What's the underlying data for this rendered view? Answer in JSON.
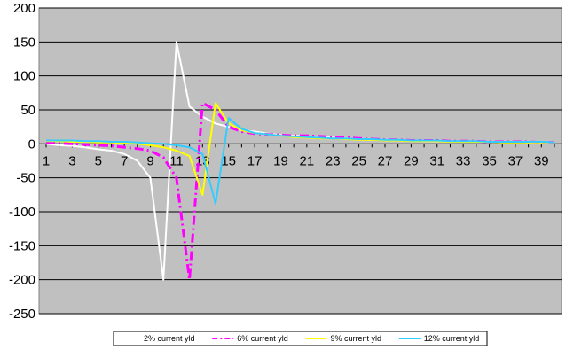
{
  "chart_data": {
    "type": "line",
    "title": "",
    "xlabel": "",
    "ylabel": "",
    "ylim": [
      -250,
      200
    ],
    "xlim": [
      1,
      40
    ],
    "y_ticks": [
      200,
      150,
      100,
      50,
      0,
      -50,
      -100,
      -150,
      -200,
      -250
    ],
    "x_ticks": [
      1,
      3,
      5,
      7,
      9,
      11,
      13,
      15,
      17,
      19,
      21,
      23,
      25,
      27,
      29,
      31,
      33,
      35,
      37,
      39
    ],
    "grid": true,
    "plot_background": "#c0c0c0",
    "legend_position": "bottom",
    "series": [
      {
        "name": "2% current yld",
        "color": "#ffffff",
        "dash": "solid",
        "x": [
          1,
          2,
          3,
          4,
          5,
          6,
          7,
          8,
          9,
          10,
          11,
          12,
          13,
          14,
          15,
          16,
          17,
          18,
          19,
          20,
          21,
          22,
          23,
          24,
          25,
          26,
          27,
          28,
          29,
          30,
          31,
          32,
          33,
          34,
          35,
          36,
          37,
          38,
          39,
          40
        ],
        "y": [
          0,
          -2,
          -3,
          -5,
          -8,
          -10,
          -15,
          -25,
          -50,
          -200,
          150,
          55,
          40,
          30,
          25,
          20,
          18,
          15,
          13,
          12,
          11,
          10,
          9,
          8,
          7,
          6,
          6,
          5,
          5,
          4,
          4,
          4,
          3,
          3,
          3,
          3,
          3,
          2,
          2,
          2
        ]
      },
      {
        "name": "6% current yld",
        "color": "#ff00ff",
        "dash": "dashdot",
        "x": [
          1,
          2,
          3,
          4,
          5,
          6,
          7,
          8,
          9,
          10,
          11,
          12,
          13,
          14,
          15,
          16,
          17,
          18,
          19,
          20,
          21,
          22,
          23,
          24,
          25,
          26,
          27,
          28,
          29,
          30,
          31,
          32,
          33,
          34,
          35,
          36,
          37,
          38,
          39,
          40
        ],
        "y": [
          2,
          1,
          0,
          -1,
          -2,
          -3,
          -5,
          -7,
          -10,
          -20,
          -50,
          -200,
          60,
          50,
          25,
          18,
          15,
          14,
          13,
          12,
          12,
          11,
          10,
          9,
          8,
          7,
          6,
          6,
          5,
          5,
          5,
          4,
          4,
          4,
          3,
          3,
          3,
          3,
          2,
          2
        ]
      },
      {
        "name": "9% current yld",
        "color": "#ffff00",
        "dash": "solid",
        "x": [
          1,
          2,
          3,
          4,
          5,
          6,
          7,
          8,
          9,
          10,
          11,
          12,
          13,
          14,
          15,
          16,
          17,
          18,
          19,
          20,
          21,
          22,
          23,
          24,
          25,
          26,
          27,
          28,
          29,
          30,
          31,
          32,
          33,
          34,
          35,
          36,
          37,
          38,
          39,
          40
        ],
        "y": [
          4,
          4,
          3,
          3,
          2,
          2,
          1,
          0,
          -2,
          -5,
          -10,
          -18,
          -75,
          60,
          30,
          20,
          16,
          14,
          12,
          10,
          9,
          8,
          8,
          7,
          6,
          6,
          5,
          5,
          4,
          4,
          4,
          3,
          3,
          3,
          3,
          2,
          2,
          2,
          2,
          2
        ]
      },
      {
        "name": "12% current yld",
        "color": "#33ccff",
        "dash": "solid",
        "x": [
          1,
          2,
          3,
          4,
          5,
          6,
          7,
          8,
          9,
          10,
          11,
          12,
          13,
          14,
          15,
          16,
          17,
          18,
          19,
          20,
          21,
          22,
          23,
          24,
          25,
          26,
          27,
          28,
          29,
          30,
          31,
          32,
          33,
          34,
          35,
          36,
          37,
          38,
          39,
          40
        ],
        "y": [
          5,
          5,
          5,
          4,
          4,
          3,
          3,
          2,
          1,
          0,
          -2,
          -5,
          -15,
          -88,
          38,
          22,
          16,
          14,
          12,
          11,
          10,
          9,
          8,
          8,
          7,
          7,
          6,
          6,
          5,
          5,
          5,
          4,
          4,
          4,
          3,
          3,
          3,
          3,
          3,
          2
        ]
      }
    ]
  }
}
